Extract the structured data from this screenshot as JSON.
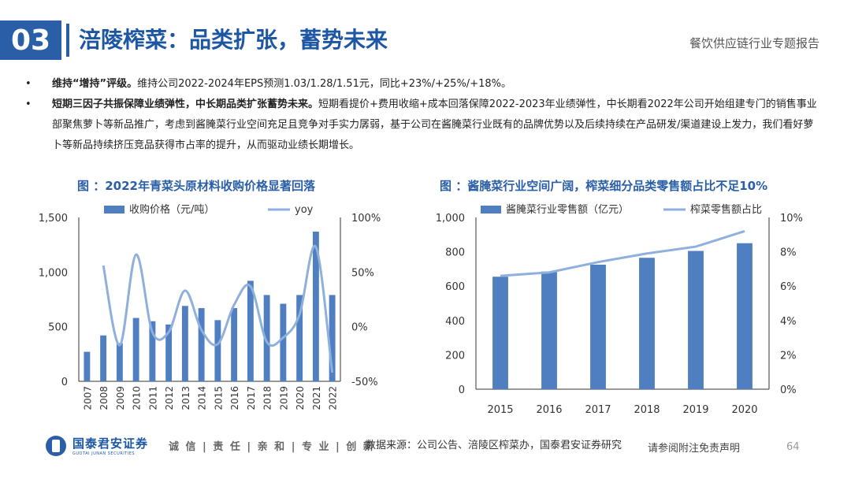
{
  "header": {
    "section_number": "03",
    "title": "涪陵榨菜：品类扩张，蓄势未来",
    "report_name": "餐饮供应链行业专题报告"
  },
  "bullets": [
    {
      "dot": "•",
      "bold": "维持“增持”评级。",
      "text": "维持公司2022-2024年EPS预测1.03/1.28/1.51元，同比+23%/+25%/+18%。"
    },
    {
      "dot": "•",
      "bold": "短期三因子共振保障业绩弹性，中长期品类扩张蓄势未来。",
      "text": "短期看提价+费用收缩+成本回落保障2022-2023年业绩弹性，中长期看2022年公司开始组建专门的销售事业部聚焦萝卜等新品推广，考虑到酱腌菜行业空间充足且竞争对手实力孱弱，基于公司在酱腌菜行业既有的品牌优势以及后续持续在产品研发/渠道建设上发力，我们看好萝卜等新品持续挤压竞品获得市占率的提升，从而驱动业绩长期增长。"
    }
  ],
  "chart_data": [
    {
      "type": "bar+line",
      "title": "图 ：2022年青菜头原材料收购价格显著回落",
      "legend": [
        "收购价格（元/吨）",
        "yoy"
      ],
      "categories": [
        "2007",
        "2008",
        "2009",
        "2010",
        "2011",
        "2012",
        "2013",
        "2014",
        "2015",
        "2016",
        "2017",
        "2018",
        "2019",
        "2020",
        "2021",
        "2022"
      ],
      "series": [
        {
          "name": "收购价格（元/吨）",
          "axis": "left",
          "values": [
            270,
            420,
            350,
            580,
            550,
            520,
            690,
            670,
            560,
            670,
            920,
            790,
            710,
            790,
            1370,
            790
          ]
        },
        {
          "name": "yoy",
          "axis": "right",
          "values": [
            null,
            0.56,
            -0.17,
            0.66,
            -0.05,
            -0.05,
            0.33,
            -0.03,
            -0.16,
            0.2,
            0.37,
            -0.14,
            -0.1,
            0.11,
            0.73,
            -0.42
          ]
        }
      ],
      "ylim_left": [
        0,
        1500
      ],
      "yticks_left": [
        "1,500",
        "1,000",
        "500",
        "0"
      ],
      "ylim_right": [
        -0.5,
        1.0
      ],
      "yticks_right": [
        "100%",
        "50%",
        "0%",
        "-50%"
      ],
      "colors": {
        "bar": "#4f7fc1",
        "line": "#8fb0dc"
      }
    },
    {
      "type": "bar+line",
      "title": "图 ：酱腌菜行业空间广阔，榨菜细分品类零售额占比不足10%",
      "legend": [
        "酱腌菜行业零售额（亿元）",
        "榨菜零售额占比"
      ],
      "categories": [
        "2015",
        "2016",
        "2017",
        "2018",
        "2019",
        "2020"
      ],
      "series": [
        {
          "name": "酱腌菜行业零售额（亿元）",
          "axis": "left",
          "values": [
            655,
            685,
            725,
            765,
            805,
            850
          ]
        },
        {
          "name": "榨菜零售额占比",
          "axis": "right",
          "values": [
            0.066,
            0.068,
            0.074,
            0.079,
            0.083,
            0.092
          ]
        }
      ],
      "ylim_left": [
        0,
        1000
      ],
      "yticks_left": [
        "1,000",
        "800",
        "600",
        "400",
        "200",
        "0"
      ],
      "ylim_right": [
        0,
        0.1
      ],
      "yticks_right": [
        "10%",
        "8%",
        "6%",
        "4%",
        "2%",
        "0%"
      ],
      "colors": {
        "bar": "#4f7fc1",
        "line": "#8fb0dc"
      }
    }
  ],
  "footer": {
    "logo_cn": "国泰君安证券",
    "logo_en": "GUOTAI JUNAN SECURITIES",
    "slogan": "诚 信 | 责 任 | 亲 和 | 专 业 | 创 新",
    "source": "数据来源：公司公告、涪陵区榨菜办，国泰君安证券研究",
    "disclaimer": "请参阅附注免责声明",
    "page_number": "64"
  }
}
